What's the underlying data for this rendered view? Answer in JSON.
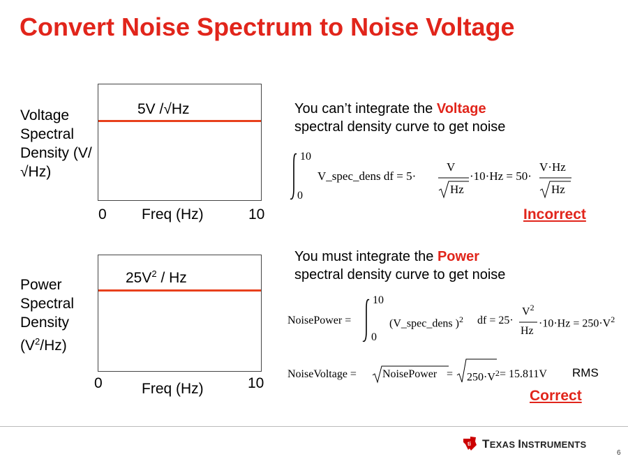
{
  "slide": {
    "title": "Convert Noise Spectrum to Noise Voltage",
    "page_number": "6"
  },
  "upper_plot": {
    "y_label_lines": [
      "Voltage",
      "Spectral",
      "Density (V/",
      "√Hz)"
    ],
    "level_label": "5V /√Hz",
    "x_start": "0",
    "x_label": "Freq (Hz)",
    "x_end": "10",
    "trace_color": "#e8401c"
  },
  "lower_plot": {
    "y_label_lines": [
      "Power",
      "Spectral",
      "Density"
    ],
    "y_label_units": {
      "pre": "(V",
      "sup": "2",
      "post": "/Hz)"
    },
    "level_label": {
      "pre": "25V",
      "sup": "2",
      "post": " / Hz"
    },
    "x_start": "0",
    "x_label": "Freq (Hz)",
    "x_end": "10",
    "trace_color": "#e8401c"
  },
  "voltage_method": {
    "line1_pre": "You can’t integrate the ",
    "line1_highlight": "Voltage",
    "line2": "spectral density curve to get noise",
    "equation": {
      "upper_limit": "10",
      "lower_limit": "0",
      "integrand": "V_spec_dens  df = 5·",
      "frac1_num": "V",
      "frac1_den": "Hz",
      "middle": "·10·Hz = 50·",
      "frac2_num": "V·Hz",
      "frac2_den": "Hz"
    },
    "verdict": "Incorrect"
  },
  "power_method": {
    "line1_pre": "You must integrate the ",
    "line1_highlight": "Power",
    "line2": "spectral density curve to get noise",
    "power_equation": {
      "lhs": "NoisePower =",
      "upper_limit": "10",
      "lower_limit": "0",
      "integrand": "(V_spec_dens )",
      "integrand_exp": "2",
      "mid": "df = 25·",
      "frac_num": "V",
      "frac_num_exp": "2",
      "frac_den": "Hz",
      "tail": "·10·Hz = 250·V",
      "tail_exp": "2"
    },
    "voltage_equation": {
      "lhs": "NoiseVoltage =",
      "sqrt1": "NoisePower",
      "eq": "=",
      "sqrt2": "250·V",
      "sqrt2_exp": "2",
      "result": "= 15.811V",
      "unit": "RMS"
    },
    "verdict": "Correct"
  },
  "footer": {
    "brand": "Texas Instruments",
    "brand_big1": "T",
    "brand_small1": "EXAS ",
    "brand_big2": "I",
    "brand_small2": "NSTRUMENTS",
    "brand_color": "#cc0000"
  }
}
